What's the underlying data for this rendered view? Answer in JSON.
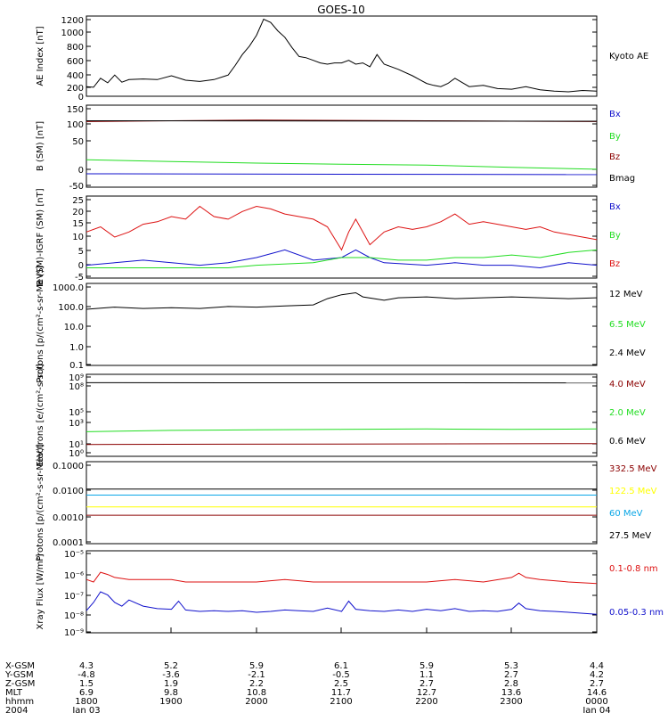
{
  "title": "GOES-10",
  "colors": {
    "black": "#000000",
    "red": "#dd1111",
    "dkred": "#8b0000",
    "green": "#22dd22",
    "blue": "#1111cc",
    "cyan": "#0aa6e6",
    "yellow": "#ffff00"
  },
  "chart_data": [
    {
      "type": "line",
      "ylabel": "AE Index [nT]",
      "yticks": [
        "1200",
        "1000",
        "800",
        "600",
        "400",
        "200",
        "0"
      ],
      "ylim": [
        0,
        1250
      ],
      "series": [
        {
          "name": "Kyoto AE",
          "color": "black",
          "x": [
            1800,
            1805,
            1810,
            1815,
            1820,
            1825,
            1830,
            1840,
            1850,
            1900,
            1910,
            1920,
            1930,
            1940,
            1945,
            1950,
            1955,
            2000,
            2005,
            2010,
            2015,
            2020,
            2025,
            2030,
            2035,
            2040,
            2045,
            2050,
            2055,
            2100,
            2105,
            2110,
            2115,
            2120,
            2125,
            2130,
            2140,
            2150,
            2155,
            2200,
            2205,
            2210,
            2215,
            2220,
            2230,
            2240,
            2250,
            2300,
            2310,
            2320,
            2330,
            2340,
            2350,
            2400
          ],
          "y": [
            150,
            140,
            280,
            210,
            330,
            220,
            260,
            270,
            260,
            320,
            250,
            230,
            260,
            330,
            480,
            650,
            780,
            950,
            1200,
            1150,
            1020,
            920,
            760,
            620,
            600,
            560,
            520,
            500,
            520,
            520,
            560,
            500,
            520,
            460,
            650,
            500,
            420,
            320,
            260,
            200,
            170,
            150,
            200,
            280,
            150,
            170,
            120,
            110,
            150,
            100,
            80,
            70,
            90,
            80
          ]
        }
      ]
    },
    {
      "type": "line",
      "ylabel": "B (SM) [nT]",
      "yticks": [
        "150",
        "100",
        "50",
        "0",
        "-50"
      ],
      "ylim": [
        -55,
        160
      ],
      "series": [
        {
          "name": "Bx",
          "color": "blue",
          "x": [
            1800,
            2400
          ],
          "y": [
            -20,
            -22
          ]
        },
        {
          "name": "By",
          "color": "green",
          "x": [
            1800,
            1900,
            2000,
            2100,
            2200,
            2300,
            2400
          ],
          "y": [
            17,
            12,
            8,
            5,
            3,
            -3,
            -8
          ]
        },
        {
          "name": "Bz",
          "color": "dkred",
          "x": [
            1800,
            1900,
            2000,
            2100,
            2200,
            2300,
            2400
          ],
          "y": [
            117,
            119,
            121,
            120,
            119,
            118,
            117
          ]
        },
        {
          "name": "Bmag",
          "color": "black",
          "x": [
            1800,
            2400
          ],
          "y": [
            119,
            118
          ]
        }
      ]
    },
    {
      "type": "line",
      "ylabel": "B (SM)-IGRF (SM) [nT]",
      "yticks": [
        "25",
        "20",
        "15",
        "10",
        "5",
        "0",
        "-5"
      ],
      "ylim": [
        -6,
        26
      ],
      "series": [
        {
          "name": "Bx",
          "color": "blue",
          "x": [
            1800,
            1820,
            1840,
            1900,
            1920,
            1940,
            1950,
            2000,
            2020,
            2040,
            2100,
            2110,
            2120,
            2130,
            2200,
            2220,
            2240,
            2300,
            2320,
            2340,
            2400
          ],
          "y": [
            -1,
            0,
            1,
            0,
            -1,
            0,
            1,
            2,
            5,
            1,
            2,
            5,
            2,
            0,
            -1,
            0,
            -1,
            -1,
            -2,
            0,
            -1
          ]
        },
        {
          "name": "By",
          "color": "green",
          "x": [
            1800,
            1840,
            1900,
            1940,
            2000,
            2040,
            2100,
            2120,
            2140,
            2200,
            2220,
            2240,
            2300,
            2320,
            2340,
            2400
          ],
          "y": [
            -2,
            -2,
            -2,
            -2,
            -1,
            0,
            2,
            2,
            1,
            1,
            2,
            2,
            3,
            2,
            4,
            5
          ]
        },
        {
          "name": "Bz",
          "color": "red",
          "x": [
            1800,
            1810,
            1820,
            1830,
            1840,
            1850,
            1900,
            1910,
            1920,
            1930,
            1940,
            1950,
            2000,
            2010,
            2020,
            2030,
            2040,
            2050,
            2100,
            2105,
            2110,
            2115,
            2120,
            2130,
            2140,
            2150,
            2200,
            2210,
            2220,
            2230,
            2240,
            2250,
            2300,
            2310,
            2320,
            2330,
            2340,
            2350,
            2400
          ],
          "y": [
            12,
            14,
            10,
            12,
            15,
            16,
            18,
            17,
            22,
            18,
            17,
            20,
            22,
            21,
            19,
            18,
            17,
            14,
            5,
            12,
            17,
            12,
            7,
            12,
            14,
            13,
            14,
            16,
            19,
            15,
            16,
            15,
            14,
            13,
            14,
            12,
            11,
            10,
            9
          ]
        }
      ]
    },
    {
      "type": "line",
      "ylabel": "Protons [p/(cm²-s-sr-MeV)]",
      "yticks": [
        "1000.0",
        "100.0",
        "10.0",
        "1.0",
        "0.1"
      ],
      "yscale": "log",
      "ylim": [
        0.1,
        1000
      ],
      "series": [
        {
          "name": "12 MeV",
          "color": "black",
          "x": [
            1800,
            1820,
            1840,
            1900,
            1920,
            1940,
            2000,
            2020,
            2040,
            2050,
            2100,
            2110,
            2115,
            2130,
            2140,
            2200,
            2220,
            2240,
            2300,
            2320,
            2340,
            2400
          ],
          "y": [
            55,
            70,
            60,
            65,
            60,
            75,
            70,
            80,
            90,
            180,
            280,
            350,
            220,
            150,
            200,
            220,
            180,
            200,
            220,
            200,
            180,
            200
          ]
        },
        {
          "name": "6.5 MeV",
          "color": "green",
          "x": [
            1800,
            2400
          ],
          "y": [
            0.1,
            0.1
          ]
        },
        {
          "name": "2.4 MeV",
          "color": "black",
          "x": [
            1800,
            2400
          ],
          "y": [
            0.1,
            0.1
          ]
        }
      ]
    },
    {
      "type": "line",
      "ylabel": "Electrons [e/(cm²-s-sr)]",
      "yticks": [
        "10⁹",
        "10⁸",
        "10⁵",
        "10³",
        "10¹",
        "10⁰"
      ],
      "yscale": "log",
      "ylim": [
        1,
        1000000000
      ],
      "series": [
        {
          "name": "4.0 MeV",
          "color": "dkred",
          "x": [
            1800,
            2400
          ],
          "y": [
            20,
            25
          ]
        },
        {
          "name": "2.0 MeV",
          "color": "green",
          "x": [
            1800,
            1900,
            2000,
            2100,
            2200,
            2300,
            2400
          ],
          "y": [
            500,
            700,
            800,
            900,
            1000,
            900,
            1000
          ]
        },
        {
          "name": "0.6 MeV",
          "color": "black",
          "x": [
            1800,
            2400
          ],
          "y": [
            120000000,
            115000000
          ]
        }
      ]
    },
    {
      "type": "line",
      "ylabel": "Protons [p/(cm²-s-sr-MeV)]",
      "yticks": [
        "0.1000",
        "0.0100",
        "0.0010",
        "0.0001"
      ],
      "yscale": "log",
      "ylim": [
        0.0001,
        0.1
      ],
      "series": [
        {
          "name": "332.5 MeV",
          "color": "dkred",
          "x": [
            1800,
            2400
          ],
          "y": [
            0.0011,
            0.0011
          ]
        },
        {
          "name": "122.5 MeV",
          "color": "yellow",
          "x": [
            1800,
            2400
          ],
          "y": [
            0.0022,
            0.0022
          ]
        },
        {
          "name": "60 MeV",
          "color": "cyan",
          "x": [
            1800,
            2400
          ],
          "y": [
            0.006,
            0.006
          ]
        },
        {
          "name": "27.5 MeV",
          "color": "black",
          "x": [
            1800,
            2400
          ],
          "y": [
            0.01,
            0.01
          ]
        }
      ]
    },
    {
      "type": "line",
      "ylabel": "Xray Flux [W/m²]",
      "yticks": [
        "10⁻⁵",
        "10⁻⁶",
        "10⁻⁷",
        "10⁻⁸",
        "10⁻⁹"
      ],
      "yscale": "log",
      "ylim": [
        1e-09,
        1e-05
      ],
      "series": [
        {
          "name": "0.1-0.8 nm",
          "color": "red",
          "x": [
            1800,
            1805,
            1810,
            1815,
            1820,
            1830,
            1840,
            1900,
            1910,
            1920,
            1930,
            1940,
            2000,
            2020,
            2040,
            2100,
            2120,
            2140,
            2200,
            2220,
            2240,
            2300,
            2305,
            2310,
            2320,
            2340,
            2400
          ],
          "y": [
            4e-07,
            3e-07,
            9e-07,
            7e-07,
            5e-07,
            4e-07,
            4e-07,
            4e-07,
            3e-07,
            3e-07,
            3e-07,
            3e-07,
            3e-07,
            4e-07,
            3e-07,
            3e-07,
            3e-07,
            3e-07,
            3e-07,
            4e-07,
            3e-07,
            5e-07,
            8e-07,
            5e-07,
            4e-07,
            3e-07,
            2.5e-07
          ]
        },
        {
          "name": "0.05-0.3 nm",
          "color": "blue",
          "x": [
            1800,
            1805,
            1810,
            1815,
            1820,
            1825,
            1830,
            1840,
            1850,
            1900,
            1905,
            1910,
            1920,
            1930,
            1940,
            1950,
            2000,
            2010,
            2020,
            2030,
            2040,
            2050,
            2100,
            2105,
            2110,
            2120,
            2130,
            2140,
            2150,
            2200,
            2210,
            2220,
            2230,
            2240,
            2250,
            2300,
            2305,
            2310,
            2320,
            2330,
            2340,
            2350,
            2400
          ],
          "y": [
            1.2e-08,
            3e-08,
            1e-07,
            7e-08,
            3e-08,
            2e-08,
            4e-08,
            2e-08,
            1.5e-08,
            1.4e-08,
            3.5e-08,
            1.3e-08,
            1.1e-08,
            1.2e-08,
            1.1e-08,
            1.2e-08,
            1e-08,
            1.1e-08,
            1.3e-08,
            1.2e-08,
            1.1e-08,
            1.6e-08,
            1.1e-08,
            3.5e-08,
            1.4e-08,
            1.2e-08,
            1.1e-08,
            1.3e-08,
            1.1e-08,
            1.4e-08,
            1.2e-08,
            1.5e-08,
            1.1e-08,
            1.2e-08,
            1.1e-08,
            1.4e-08,
            2.8e-08,
            1.5e-08,
            1.2e-08,
            1.1e-08,
            1e-08,
            9e-09,
            8e-09
          ]
        }
      ]
    }
  ],
  "xaxis": {
    "row_labels": [
      "X-GSM",
      "Y-GSM",
      "Z-GSM",
      "MLT",
      "hhmm",
      "2004"
    ],
    "columns": [
      {
        "values": [
          "4.3",
          "-4.8",
          "1.5",
          "6.9",
          "1800",
          "Jan 03"
        ]
      },
      {
        "values": [
          "5.2",
          "-3.6",
          "1.9",
          "9.8",
          "1900",
          ""
        ]
      },
      {
        "values": [
          "5.9",
          "-2.1",
          "2.2",
          "10.8",
          "2000",
          ""
        ]
      },
      {
        "values": [
          "6.1",
          "-0.5",
          "2.5",
          "11.7",
          "2100",
          ""
        ]
      },
      {
        "values": [
          "5.9",
          "1.1",
          "2.7",
          "12.7",
          "2200",
          ""
        ]
      },
      {
        "values": [
          "5.3",
          "2.7",
          "2.8",
          "13.6",
          "2300",
          ""
        ]
      },
      {
        "values": [
          "4.4",
          "4.2",
          "2.7",
          "14.6",
          "0000",
          "Jan 04"
        ]
      }
    ]
  }
}
